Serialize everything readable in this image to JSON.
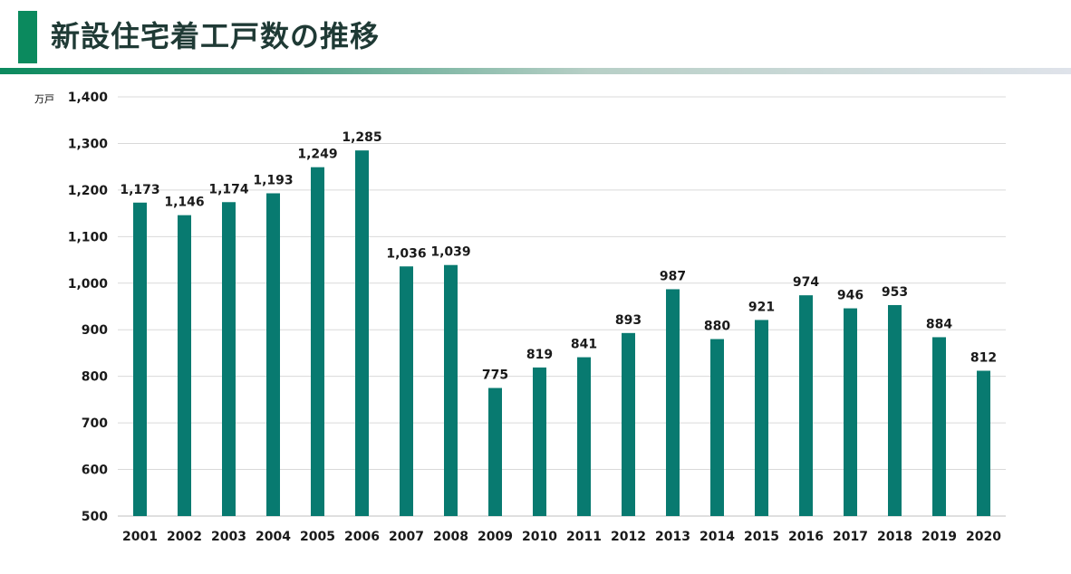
{
  "page": {
    "title": "新設住宅着工戸数の推移"
  },
  "colors": {
    "accent": "#0b8a5e",
    "bar": "#087a70",
    "grid": "#d9d9d9"
  },
  "chart_data": {
    "type": "bar",
    "title": "新設住宅着工戸数の推移",
    "ylabel": "万戸",
    "xlabel": "",
    "ylim": [
      500,
      1400
    ],
    "yticks": [
      500,
      600,
      700,
      800,
      900,
      1000,
      1100,
      1200,
      1300,
      1400
    ],
    "ytick_labels": [
      "500",
      "600",
      "700",
      "800",
      "900",
      "1,000",
      "1,100",
      "1,200",
      "1,300",
      "1,400"
    ],
    "grid": true,
    "categories": [
      "2001",
      "2002",
      "2003",
      "2004",
      "2005",
      "2006",
      "2007",
      "2008",
      "2009",
      "2010",
      "2011",
      "2012",
      "2013",
      "2014",
      "2015",
      "2016",
      "2017",
      "2018",
      "2019",
      "2020"
    ],
    "values": [
      1173,
      1146,
      1174,
      1193,
      1249,
      1285,
      1036,
      1039,
      775,
      819,
      841,
      893,
      987,
      880,
      921,
      974,
      946,
      953,
      884,
      812
    ],
    "value_labels": [
      "1,173",
      "1,146",
      "1,174",
      "1,193",
      "1,249",
      "1,285",
      "1,036",
      "1,039",
      "775",
      "819",
      "841",
      "893",
      "987",
      "880",
      "921",
      "974",
      "946",
      "953",
      "884",
      "812"
    ]
  }
}
